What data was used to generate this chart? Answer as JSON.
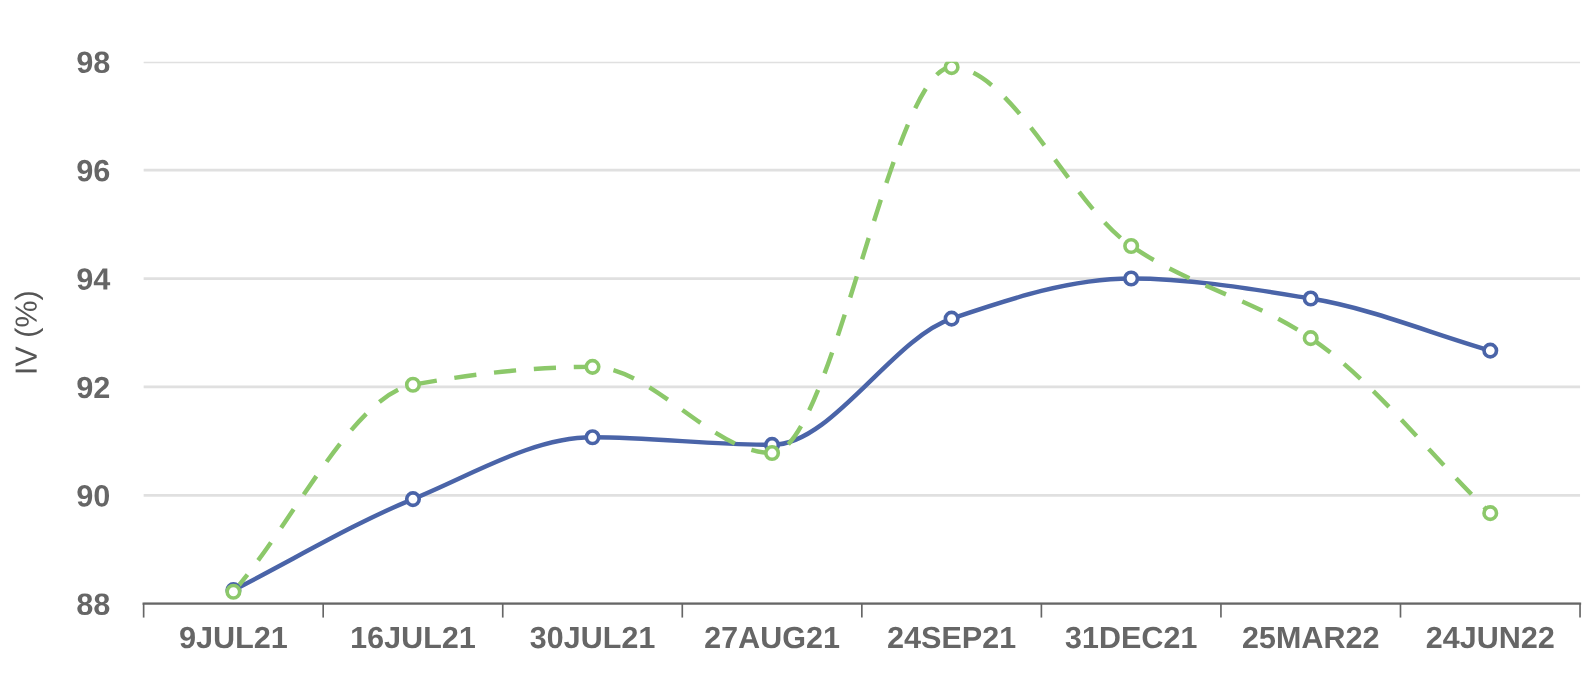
{
  "chart_data": {
    "type": "line",
    "ylabel": "IV (%)",
    "categories": [
      "9JUL21",
      "16JUL21",
      "30JUL21",
      "27AUG21",
      "24SEP21",
      "31DEC21",
      "25MAR22",
      "24JUN22"
    ],
    "series": [
      {
        "color": "#4a64a8",
        "line_style": "solid",
        "values": [
          88.25,
          89.93,
          91.07,
          90.93,
          93.26,
          94.0,
          93.63,
          92.67
        ]
      },
      {
        "color": "#8cc86a",
        "line_style": "dashed",
        "values": [
          88.22,
          92.04,
          92.37,
          90.78,
          97.9,
          94.6,
          92.9,
          89.67
        ]
      }
    ],
    "ylim": [
      88,
      98
    ],
    "yticks": [
      88,
      90,
      92,
      94,
      96,
      98
    ],
    "grid": "y",
    "marker": "circle",
    "legend": false
  }
}
